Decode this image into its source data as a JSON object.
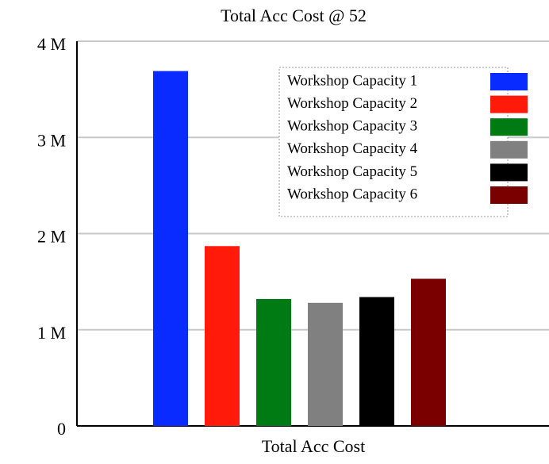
{
  "chart_data": {
    "type": "bar",
    "title": "Total Acc Cost @ 52",
    "categories": [
      "Total Acc Cost"
    ],
    "series": [
      {
        "name": "Workshop Capacity 1",
        "color": "#0a2bff",
        "values": [
          3690000
        ]
      },
      {
        "name": "Workshop Capacity 2",
        "color": "#ff1a0a",
        "values": [
          1870000
        ]
      },
      {
        "name": "Workshop Capacity 3",
        "color": "#007a12",
        "values": [
          1320000
        ]
      },
      {
        "name": "Workshop Capacity 4",
        "color": "#808080",
        "values": [
          1280000
        ]
      },
      {
        "name": "Workshop Capacity 5",
        "color": "#000000",
        "values": [
          1340000
        ]
      },
      {
        "name": "Workshop Capacity 6",
        "color": "#7a0000",
        "values": [
          1530000
        ]
      }
    ],
    "ylim": [
      0,
      4000000
    ],
    "yticks": [
      0,
      {
        "value": 1000000,
        "label": "1 M"
      },
      {
        "value": 2000000,
        "label": "2 M"
      },
      {
        "value": 3000000,
        "label": "3 M"
      },
      {
        "value": 4000000,
        "label": "4 M"
      }
    ],
    "grid": true,
    "legend": "upper right"
  }
}
